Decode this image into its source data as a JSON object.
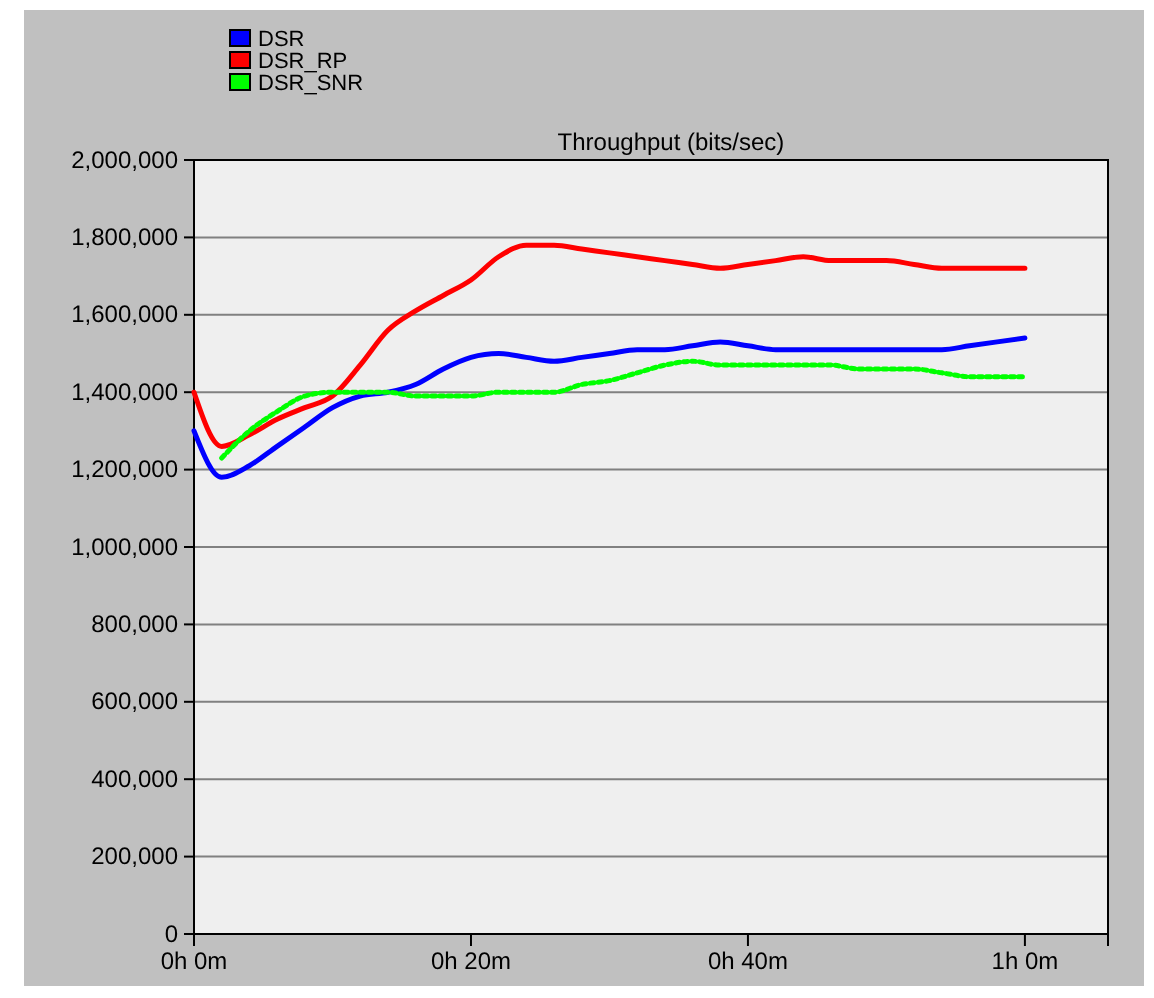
{
  "chart_data": {
    "type": "line",
    "title": "Throughput (bits/sec)",
    "categories": [
      "0h 0m",
      null,
      null,
      null,
      null,
      null,
      null,
      null,
      null,
      null,
      "0h 20m",
      null,
      null,
      null,
      null,
      null,
      null,
      null,
      null,
      null,
      "0h 40m",
      null,
      null,
      null,
      null,
      null,
      null,
      null,
      null,
      null,
      "1h 0m",
      null,
      null,
      null
    ],
    "ylim": [
      0,
      2000000
    ],
    "yticks": [
      {
        "value": 0,
        "label": "0"
      },
      {
        "value": 200000,
        "label": "200,000"
      },
      {
        "value": 400000,
        "label": "400,000"
      },
      {
        "value": 600000,
        "label": "600,000"
      },
      {
        "value": 800000,
        "label": "800,000"
      },
      {
        "value": 1000000,
        "label": "1,000,000"
      },
      {
        "value": 1200000,
        "label": "1,200,000"
      },
      {
        "value": 1400000,
        "label": "1,400,000"
      },
      {
        "value": 1600000,
        "label": "1,600,000"
      },
      {
        "value": 1800000,
        "label": "1,800,000"
      },
      {
        "value": 2000000,
        "label": "2,000,000"
      }
    ],
    "grid": "y",
    "legend": "top left",
    "series": [
      {
        "name": "DSR",
        "color": "#0000ff",
        "values": [
          1300000,
          1180000,
          1210000,
          1260000,
          1310000,
          1360000,
          1390000,
          1400000,
          1420000,
          1460000,
          1490000,
          1500000,
          1490000,
          1480000,
          1490000,
          1500000,
          1510000,
          1510000,
          1520000,
          1530000,
          1520000,
          1510000,
          1510000,
          1510000,
          1510000,
          1510000,
          1510000,
          1510000,
          1520000,
          1530000,
          1540000,
          null,
          null,
          null
        ]
      },
      {
        "name": "DSR_RP",
        "color": "#ff0000",
        "values": [
          1400000,
          1260000,
          1290000,
          1330000,
          1360000,
          1390000,
          1470000,
          1560000,
          1610000,
          1650000,
          1690000,
          1750000,
          1780000,
          1780000,
          1770000,
          1760000,
          1750000,
          1740000,
          1730000,
          1720000,
          1730000,
          1740000,
          1750000,
          1740000,
          1740000,
          1740000,
          1730000,
          1720000,
          1720000,
          1720000,
          1720000,
          null,
          null,
          null
        ]
      },
      {
        "name": "DSR_SNR",
        "color": "#00ff00",
        "line_style": "dotted",
        "values": [
          null,
          1230000,
          1300000,
          1350000,
          1390000,
          1400000,
          1400000,
          1400000,
          1390000,
          1390000,
          1390000,
          1400000,
          1400000,
          1400000,
          1420000,
          1430000,
          1450000,
          1470000,
          1480000,
          1470000,
          1470000,
          1470000,
          1470000,
          1470000,
          1460000,
          1460000,
          1460000,
          1450000,
          1440000,
          1440000,
          1440000,
          null,
          null,
          null
        ]
      }
    ]
  }
}
